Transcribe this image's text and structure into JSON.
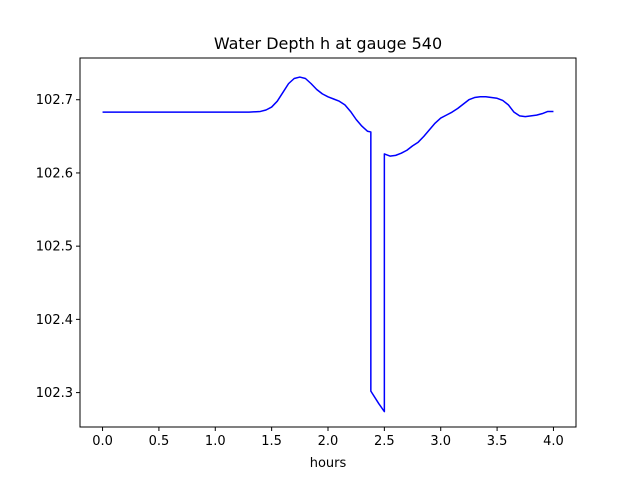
{
  "chart_data": {
    "type": "line",
    "title": "Water Depth h at gauge 540",
    "xlabel": "hours",
    "ylabel": "",
    "xlim": [
      -0.2,
      4.2
    ],
    "ylim": [
      102.253,
      102.757
    ],
    "xticks": [
      0.0,
      0.5,
      1.0,
      1.5,
      2.0,
      2.5,
      3.0,
      3.5,
      4.0
    ],
    "xtick_labels": [
      "0.0",
      "0.5",
      "1.0",
      "1.5",
      "2.0",
      "2.5",
      "3.0",
      "3.5",
      "4.0"
    ],
    "yticks": [
      102.3,
      102.4,
      102.5,
      102.6,
      102.7
    ],
    "ytick_labels": [
      "102.3",
      "102.4",
      "102.5",
      "102.6",
      "102.7"
    ],
    "grid": false,
    "legend": "none",
    "series": [
      {
        "color": "#0000ff",
        "x": [
          0.0,
          0.5,
          1.0,
          1.3,
          1.4,
          1.45,
          1.5,
          1.55,
          1.6,
          1.65,
          1.7,
          1.75,
          1.8,
          1.85,
          1.9,
          1.95,
          2.0,
          2.05,
          2.1,
          2.15,
          2.2,
          2.25,
          2.3,
          2.35,
          2.38,
          2.38,
          2.45,
          2.5,
          2.5,
          2.55,
          2.6,
          2.65,
          2.7,
          2.75,
          2.8,
          2.85,
          2.9,
          2.95,
          3.0,
          3.05,
          3.1,
          3.15,
          3.2,
          3.25,
          3.3,
          3.35,
          3.4,
          3.45,
          3.5,
          3.55,
          3.6,
          3.65,
          3.7,
          3.75,
          3.8,
          3.85,
          3.9,
          3.95,
          4.0
        ],
        "y": [
          102.683,
          102.683,
          102.683,
          102.683,
          102.684,
          102.686,
          102.69,
          102.698,
          102.71,
          102.722,
          102.729,
          102.731,
          102.729,
          102.722,
          102.714,
          102.708,
          102.704,
          102.701,
          102.698,
          102.693,
          102.684,
          102.673,
          102.664,
          102.657,
          102.656,
          102.302,
          102.285,
          102.274,
          102.626,
          102.623,
          102.624,
          102.627,
          102.631,
          102.637,
          102.642,
          102.65,
          102.659,
          102.668,
          102.675,
          102.679,
          102.683,
          102.688,
          102.694,
          102.7,
          102.703,
          102.704,
          102.704,
          102.703,
          102.702,
          102.699,
          102.693,
          102.683,
          102.678,
          102.677,
          102.678,
          102.679,
          102.681,
          102.684,
          102.684
        ]
      }
    ]
  }
}
